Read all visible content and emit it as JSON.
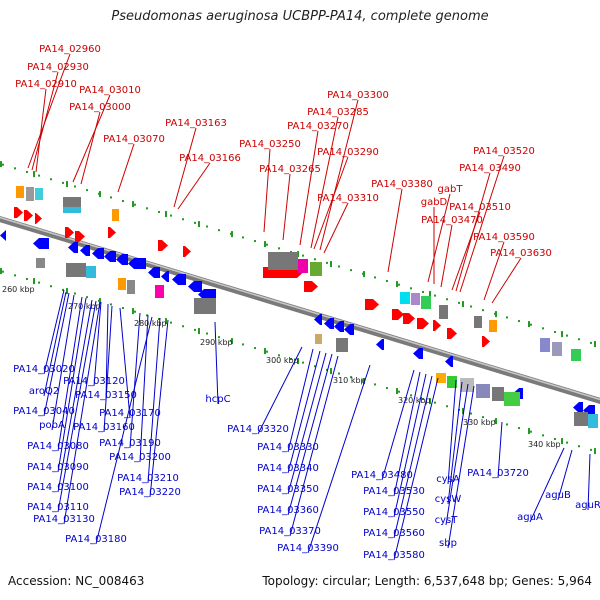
{
  "title": "Pseudomonas aeruginosa UCBPP-PA14, complete genome",
  "footer": {
    "accession": "Accession: NC_008463",
    "topology": "Topology: circular; Length: 6,537,648 bp; Genes: 5,964"
  },
  "colors": {
    "forward_label": "#cc0000",
    "reverse_label": "#0000cc",
    "forward_gene": "#ff0000",
    "reverse_gene": "#0000ff",
    "axis": "#7a7a7a",
    "tick": "#229922"
  },
  "scale": [
    "260 kbp",
    "270 kbp",
    "280 kbp",
    "290 kbp",
    "300 kbp",
    "310 kbp",
    "320 kbp",
    "330 kbp",
    "340 kbp"
  ],
  "forward_labels": [
    "PA14_02960",
    "PA14_02930",
    "PA14_02910",
    "PA14_03010",
    "PA14_03000",
    "PA14_03070",
    "PA14_03163",
    "PA14_03166",
    "PA14_03250",
    "PA14_03265",
    "PA14_03270",
    "PA14_03285",
    "PA14_03300",
    "PA14_03290",
    "PA14_03310",
    "PA14_03380",
    "gabT",
    "gabD",
    "PA14_03470",
    "PA14_03510",
    "PA14_03520",
    "PA14_03490",
    "PA14_03590",
    "PA14_03630"
  ],
  "reverse_labels": [
    "PA14_03020",
    "aroQ2",
    "PA14_03040",
    "pobA",
    "PA14_03080",
    "PA14_03090",
    "PA14_03100",
    "PA14_03110",
    "PA14_03130",
    "PA14_03120",
    "PA14_03150",
    "PA14_03160",
    "PA14_03170",
    "PA14_03190",
    "PA14_03200",
    "PA14_03210",
    "PA14_03220",
    "PA14_03180",
    "hcpC",
    "PA14_03320",
    "PA14_03330",
    "PA14_03340",
    "PA14_03350",
    "PA14_03360",
    "PA14_03370",
    "PA14_03390",
    "PA14_03480",
    "PA14_03530",
    "PA14_03550",
    "PA14_03560",
    "PA14_03580",
    "cysA",
    "cysW",
    "cysT",
    "sbp",
    "PA14_03720",
    "aguA",
    "aguB",
    "aguR"
  ]
}
